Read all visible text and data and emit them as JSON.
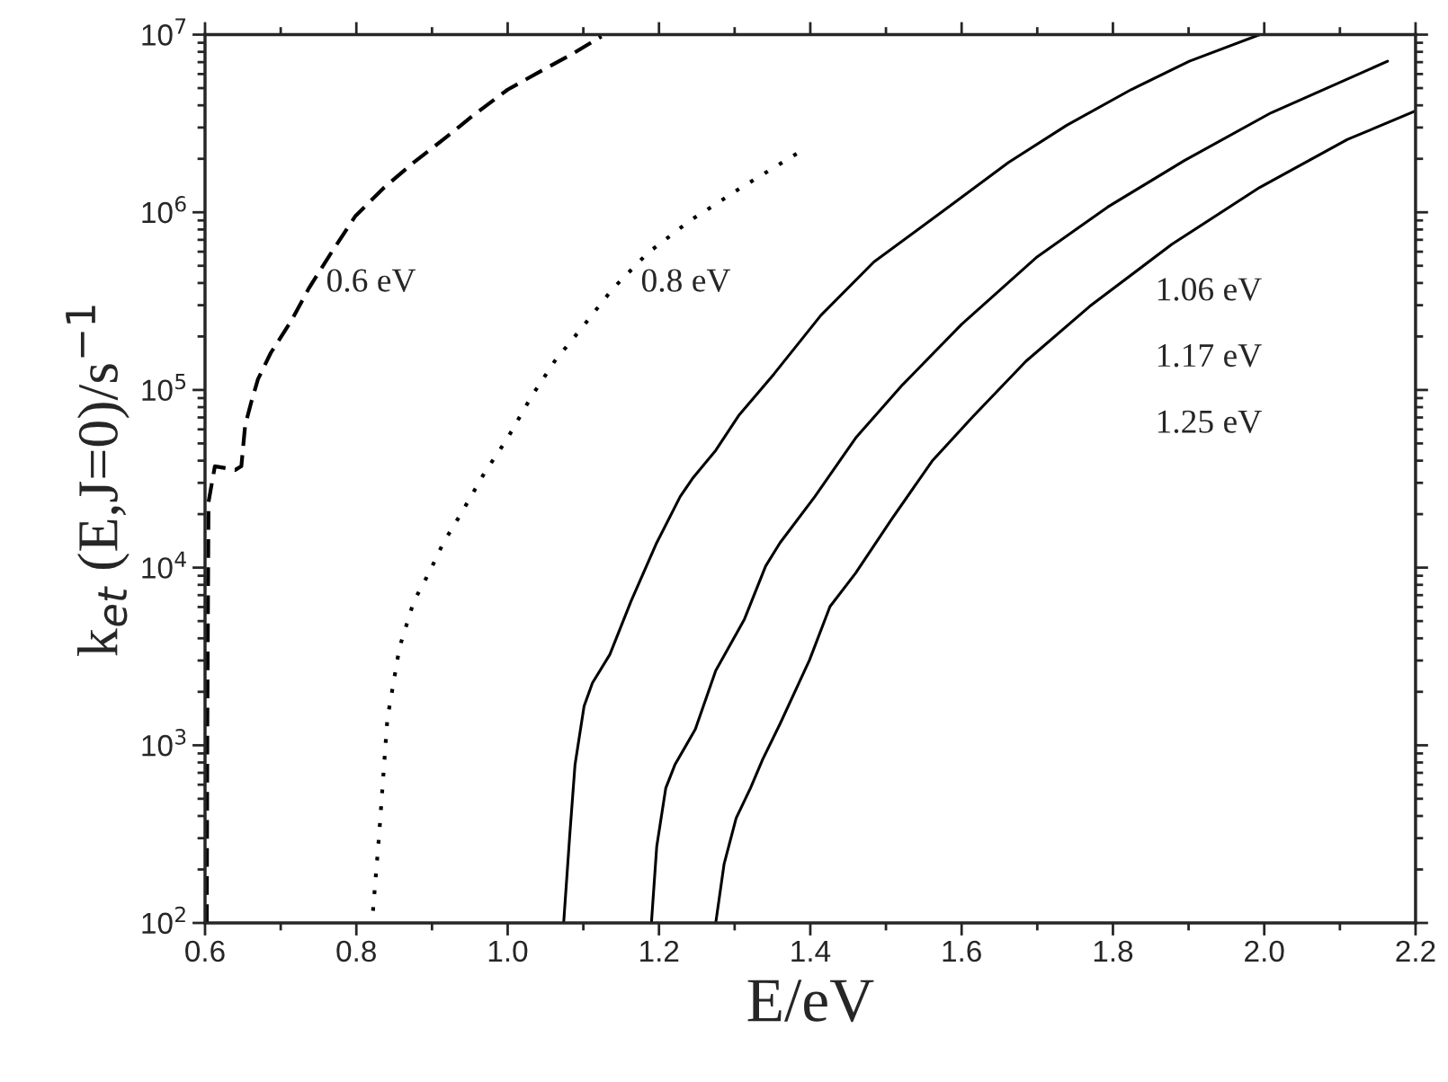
{
  "chart_data": {
    "type": "line",
    "xlabel": "E/eV",
    "ylabel": "k$_{et}$ (E,J=0)/s$^{−1}$",
    "log": "y",
    "grid": false,
    "legend": false,
    "xlim": [
      0.6,
      2.2
    ],
    "xticks": [
      {
        "value": 0.6,
        "label": "0.6"
      },
      {
        "value": 0.8,
        "label": "0.8"
      },
      {
        "value": 1.0,
        "label": "1.0"
      },
      {
        "value": 1.2,
        "label": "1.2"
      },
      {
        "value": 1.4,
        "label": "1.4"
      },
      {
        "value": 1.6,
        "label": "1.6"
      },
      {
        "value": 1.8,
        "label": "1.8"
      },
      {
        "value": 2.0,
        "label": "2.0"
      },
      {
        "value": 2.2,
        "label": "2.2"
      }
    ],
    "ylim": [
      100,
      10000000
    ],
    "yticks": [
      {
        "value": 100,
        "label": "10$^{2}$"
      },
      {
        "value": 1000,
        "label": "10$^{3}$"
      },
      {
        "value": 10000,
        "label": "10$^{4}$"
      },
      {
        "value": 100000,
        "label": "10$^{5}$"
      },
      {
        "value": 1000000,
        "label": "10$^{6}$"
      },
      {
        "value": 10000000,
        "label": "10$^{7}$"
      }
    ],
    "annotations": [
      "1.06 eV",
      "1.17 eV",
      "1.25 eV"
    ],
    "series": [
      {
        "name": "0.6 eV",
        "color": "#000000",
        "line_style": "dashed",
        "x": [
          0.6023,
          0.6031,
          0.6046,
          0.613,
          0.64,
          0.648,
          0.653,
          0.661,
          0.67,
          0.687,
          0.714,
          0.737,
          0.768,
          0.799,
          0.837,
          0.876,
          0.915,
          0.953,
          1.0,
          1.046,
          1.085,
          1.124
        ],
        "values": [
          100,
          1410,
          23400,
          37200,
          35500,
          37200,
          63100,
          85100,
          115000,
          162000,
          245000,
          372000,
          603000,
          955000,
          1380000,
          1910000,
          2570000,
          3470000,
          4900000,
          6310000,
          7760000,
          9770000
        ]
      },
      {
        "name": "0.8 eV",
        "color": "#000000",
        "line_style": "dotted",
        "x": [
          0.822,
          0.83,
          0.841,
          0.857,
          0.876,
          0.896,
          0.915,
          0.938,
          0.969,
          1.0,
          1.031,
          1.062,
          1.1,
          1.139,
          1.185,
          1.24,
          1.309,
          1.39
        ],
        "values": [
          117,
          309,
          1410,
          3550,
          6460,
          9330,
          13800,
          20000,
          33900,
          53700,
          91200,
          145000,
          229000,
          372000,
          589000,
          891000,
          1380000,
          2240000
        ]
      },
      {
        "color": "#000000",
        "line_style": "solid",
        "x": [
          1.074,
          1.082,
          1.089,
          1.101,
          1.112,
          1.135,
          1.163,
          1.197,
          1.228,
          1.244,
          1.275,
          1.306,
          1.352,
          1.414,
          1.484,
          1.576,
          1.662,
          1.739,
          1.824,
          1.901,
          1.994
        ],
        "values": [
          100,
          309,
          776,
          1660,
          2240,
          3240,
          6460,
          13800,
          25100,
          31600,
          45700,
          72400,
          123000,
          263000,
          525000,
          1020000,
          1910000,
          3090000,
          4900000,
          7080000,
          10000000
        ]
      },
      {
        "color": "#000000",
        "line_style": "solid",
        "x": [
          1.19,
          1.197,
          1.209,
          1.221,
          1.248,
          1.275,
          1.313,
          1.341,
          1.36,
          1.406,
          1.46,
          1.522,
          1.6,
          1.7,
          1.793,
          1.894,
          2.009,
          2.163
        ],
        "values": [
          100,
          269,
          575,
          776,
          1230,
          2630,
          5130,
          10200,
          13800,
          25100,
          53700,
          107000,
          234000,
          562000,
          1070000,
          1950000,
          3630000,
          7080000
        ]
      },
      {
        "color": "#000000",
        "line_style": "solid",
        "x": [
          1.275,
          1.286,
          1.302,
          1.321,
          1.337,
          1.36,
          1.399,
          1.426,
          1.46,
          1.507,
          1.561,
          1.615,
          1.685,
          1.769,
          1.878,
          1.994,
          2.11,
          2.2
        ],
        "values": [
          100,
          214,
          389,
          575,
          832,
          1320,
          3020,
          6030,
          9330,
          18600,
          39800,
          70800,
          145000,
          295000,
          661000,
          1380000,
          2570000,
          3720000
        ]
      }
    ]
  }
}
